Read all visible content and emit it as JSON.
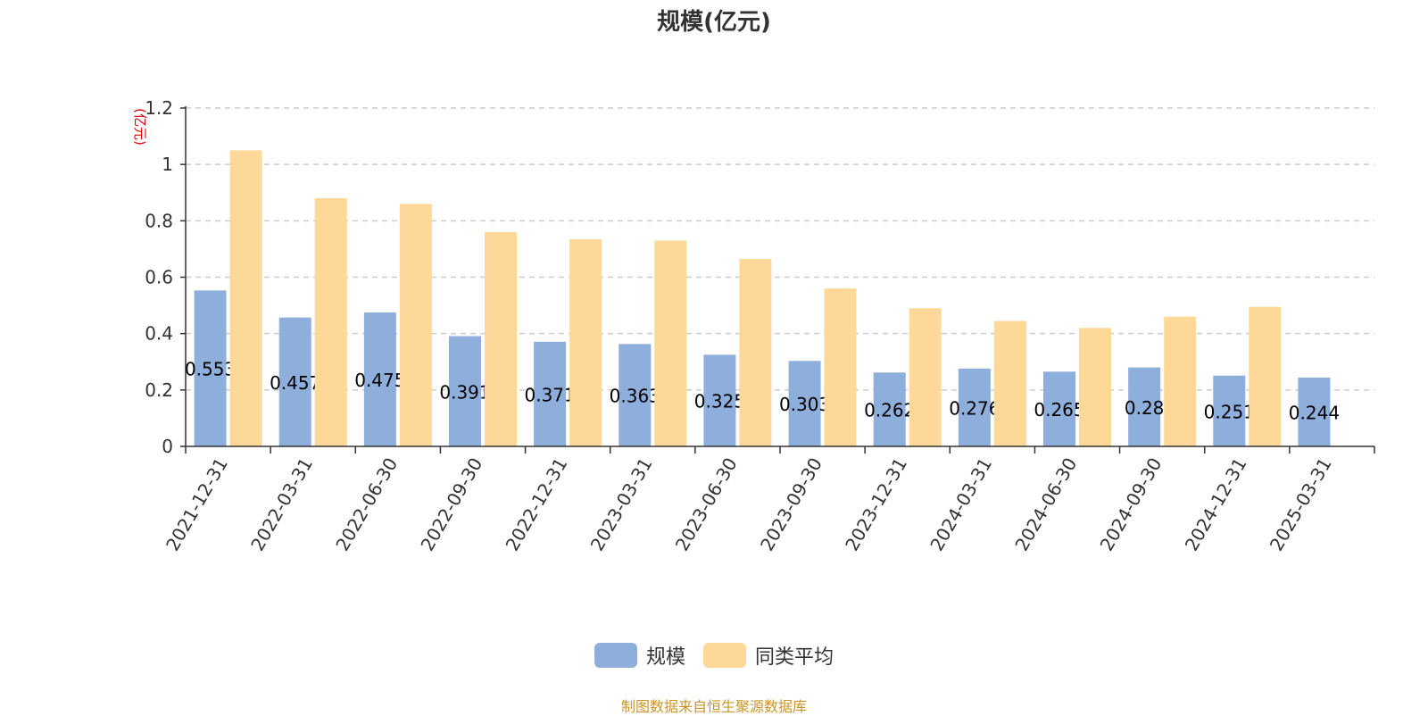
{
  "chart_data": {
    "type": "bar",
    "title": "规模(亿元)",
    "ylabel": "(亿元)",
    "ylim": [
      0,
      1.2
    ],
    "yticks": [
      "0",
      "0.2",
      "0.4",
      "0.6",
      "0.8",
      "1",
      "1.2"
    ],
    "grid": true,
    "legend_position": "bottom",
    "categories": [
      "2021-12-31",
      "2022-03-31",
      "2022-06-30",
      "2022-09-30",
      "2022-12-31",
      "2023-03-31",
      "2023-06-30",
      "2023-09-30",
      "2023-12-31",
      "2024-03-31",
      "2024-06-30",
      "2024-09-30",
      "2024-12-31",
      "2025-03-31"
    ],
    "series": [
      {
        "name": "规模",
        "color": "#8eaedc",
        "values": [
          0.553,
          0.457,
          0.475,
          0.391,
          0.371,
          0.363,
          0.325,
          0.303,
          0.262,
          0.276,
          0.265,
          0.28,
          0.251,
          0.244
        ],
        "labels": [
          "0.553",
          "0.457",
          "0.475",
          "0.391",
          "0.371",
          "0.363",
          "0.325",
          "0.303",
          "0.262",
          "0.276",
          "0.265",
          "0.28",
          "0.251",
          "0.244"
        ]
      },
      {
        "name": "同类平均",
        "color": "#fed898",
        "values": [
          1.05,
          0.88,
          0.86,
          0.76,
          0.735,
          0.73,
          0.665,
          0.56,
          0.49,
          0.445,
          0.42,
          0.46,
          0.495,
          null
        ]
      }
    ]
  },
  "footer": "制图数据来自恒生聚源数据库"
}
